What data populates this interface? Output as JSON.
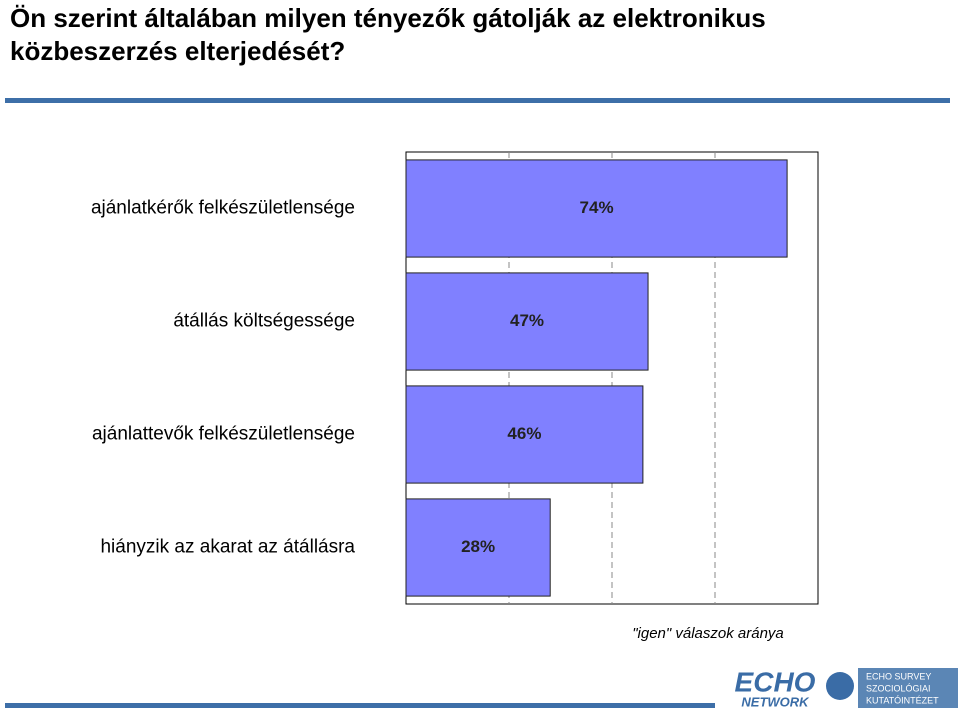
{
  "chart_data": {
    "type": "bar",
    "orientation": "horizontal",
    "title": "Ön szerint általában milyen tényezők gátolják az elektronikus közbeszerzés elterjedését?",
    "categories": [
      "ajánlatkérők felkészületlensége",
      "átállás költségessége",
      "ajánlattevők felkészületlensége",
      "hiányzik az akarat az átállásra"
    ],
    "values": [
      74,
      47,
      46,
      28
    ],
    "value_labels": [
      "74%",
      "47%",
      "46%",
      "28%"
    ],
    "color": "#8080ff",
    "xlim": [
      0,
      80
    ],
    "xticks": [
      20,
      40,
      60
    ],
    "grid": true,
    "x_label": "\"igen\" válaszok aránya"
  },
  "logo": {
    "left": [
      "ECHO",
      "NETWORK"
    ],
    "right": [
      "ECHO SURVEY",
      "SZOCIOLÓGIAI",
      "KUTATÓINTÉZET"
    ]
  }
}
